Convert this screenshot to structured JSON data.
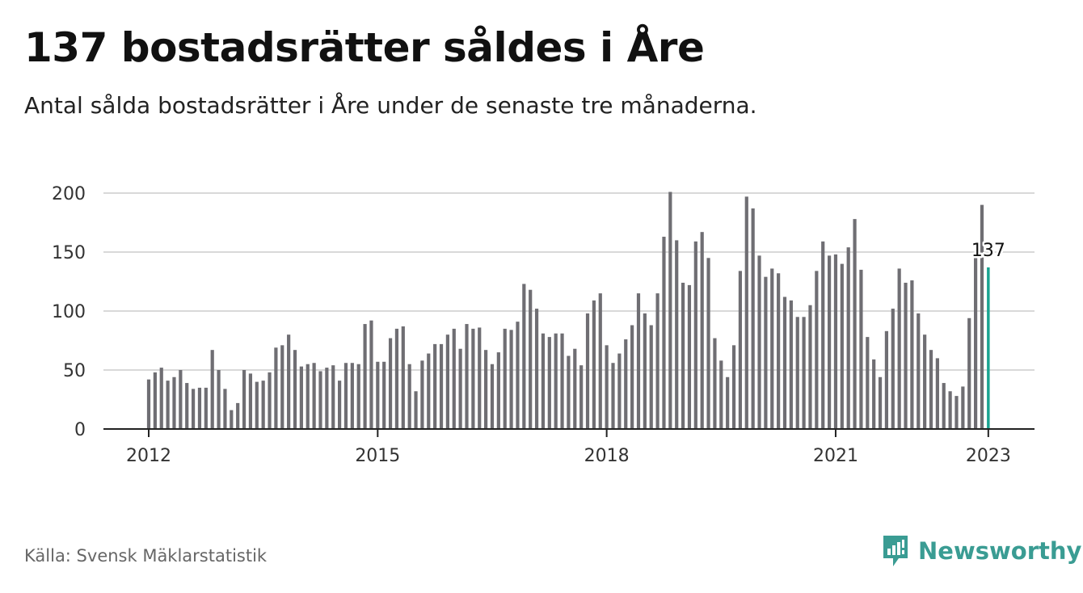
{
  "title": "137 bostadsrätter såldes i Åre",
  "subtitle": "Antal sålda bostadsrätter i Åre under de senaste tre månaderna.",
  "source": "Källa: Svensk Mäklarstatistik",
  "brand": "Newsworthy",
  "colors": {
    "bar": "#6f6e73",
    "highlight": "#1aa391",
    "grid": "#d9d9d9",
    "brand": "#3a9c93"
  },
  "chart_data": {
    "type": "bar",
    "title": "137 bostadsrätter såldes i Åre",
    "subtitle": "Antal sålda bostadsrätter i Åre under de senaste tre månaderna.",
    "xlabel": "",
    "ylabel": "",
    "ylim": [
      0,
      200
    ],
    "y_ticks": [
      "0",
      "50",
      "100",
      "150",
      "200"
    ],
    "x_ticks": [
      "2012",
      "2015",
      "2018",
      "2021",
      "2023"
    ],
    "grid": true,
    "legend": false,
    "first_period": "2012-01",
    "last_period": "2023-01",
    "highlight_label": "137",
    "values": [
      42,
      48,
      52,
      41,
      44,
      50,
      39,
      34,
      35,
      35,
      67,
      50,
      34,
      16,
      22,
      50,
      47,
      40,
      41,
      48,
      69,
      71,
      80,
      67,
      53,
      55,
      56,
      49,
      52,
      54,
      41,
      56,
      56,
      55,
      89,
      92,
      57,
      57,
      77,
      85,
      87,
      55,
      32,
      58,
      64,
      72,
      72,
      80,
      85,
      68,
      89,
      85,
      86,
      67,
      55,
      65,
      85,
      84,
      91,
      123,
      118,
      102,
      81,
      78,
      81,
      81,
      62,
      68,
      54,
      98,
      109,
      115,
      71,
      56,
      64,
      76,
      88,
      115,
      98,
      88,
      115,
      163,
      201,
      160,
      124,
      122,
      159,
      167,
      145,
      77,
      58,
      44,
      71,
      134,
      197,
      187,
      147,
      129,
      136,
      132,
      112,
      109,
      95,
      95,
      105,
      134,
      159,
      147,
      148,
      140,
      154,
      178,
      135,
      78,
      59,
      44,
      83,
      102,
      136,
      124,
      126,
      98,
      80,
      67,
      60,
      39,
      32,
      28,
      36,
      94,
      145,
      190,
      137
    ]
  }
}
